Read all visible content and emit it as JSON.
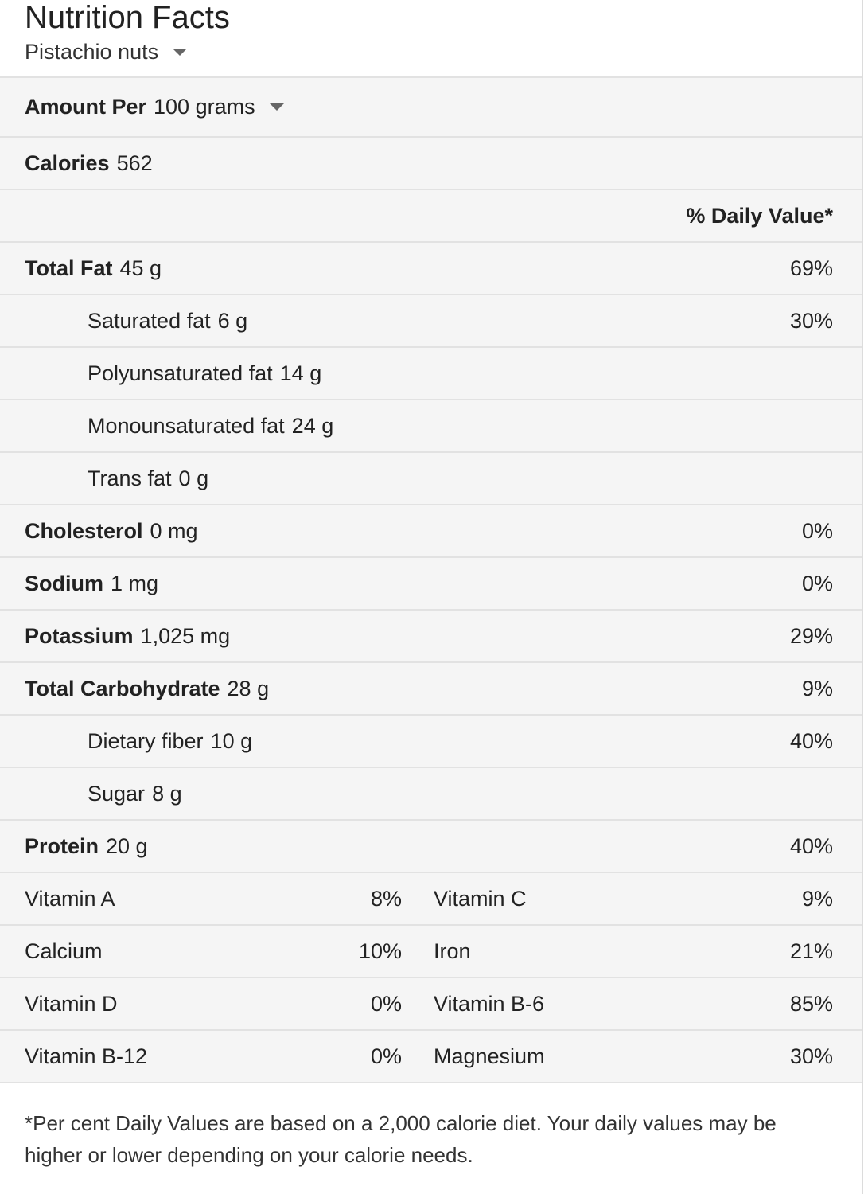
{
  "header": {
    "title": "Nutrition Facts",
    "food": "Pistachio nuts"
  },
  "serving": {
    "label": "Amount Per",
    "amount": "100 grams"
  },
  "calories": {
    "label": "Calories",
    "value": "562"
  },
  "daily_value_header": "% Daily Value*",
  "nutrients": [
    {
      "name": "Total Fat",
      "amount": "45 g",
      "daily_value": "69%"
    },
    {
      "name": "Saturated fat",
      "amount": "6 g",
      "daily_value": "30%"
    },
    {
      "name": "Polyunsaturated fat",
      "amount": "14 g"
    },
    {
      "name": "Monounsaturated fat",
      "amount": "24 g"
    },
    {
      "name": "Trans fat",
      "amount": "0 g"
    },
    {
      "name": "Cholesterol",
      "amount": "0 mg",
      "daily_value": "0%"
    },
    {
      "name": "Sodium",
      "amount": "1 mg",
      "daily_value": "0%"
    },
    {
      "name": "Potassium",
      "amount": "1,025 mg",
      "daily_value": "29%"
    },
    {
      "name": "Total Carbohydrate",
      "amount": "28 g",
      "daily_value": "9%"
    },
    {
      "name": "Dietary fiber",
      "amount": "10 g",
      "daily_value": "40%"
    },
    {
      "name": "Sugar",
      "amount": "8 g"
    },
    {
      "name": "Protein",
      "amount": "20 g",
      "daily_value": "40%"
    }
  ],
  "vitamins": [
    {
      "left": {
        "name": "Vitamin A",
        "daily_value": "8%"
      },
      "right": {
        "name": "Vitamin C",
        "daily_value": "9%"
      }
    },
    {
      "left": {
        "name": "Calcium",
        "daily_value": "10%"
      },
      "right": {
        "name": "Iron",
        "daily_value": "21%"
      }
    },
    {
      "left": {
        "name": "Vitamin D",
        "daily_value": "0%"
      },
      "right": {
        "name": "Vitamin B-6",
        "daily_value": "85%"
      }
    },
    {
      "left": {
        "name": "Vitamin B-12",
        "daily_value": "0%"
      },
      "right": {
        "name": "Magnesium",
        "daily_value": "30%"
      }
    }
  ],
  "footnote": "*Per cent Daily Values are based on a 2,000 calorie diet. Your daily values may be higher or lower depending on your calorie needs."
}
